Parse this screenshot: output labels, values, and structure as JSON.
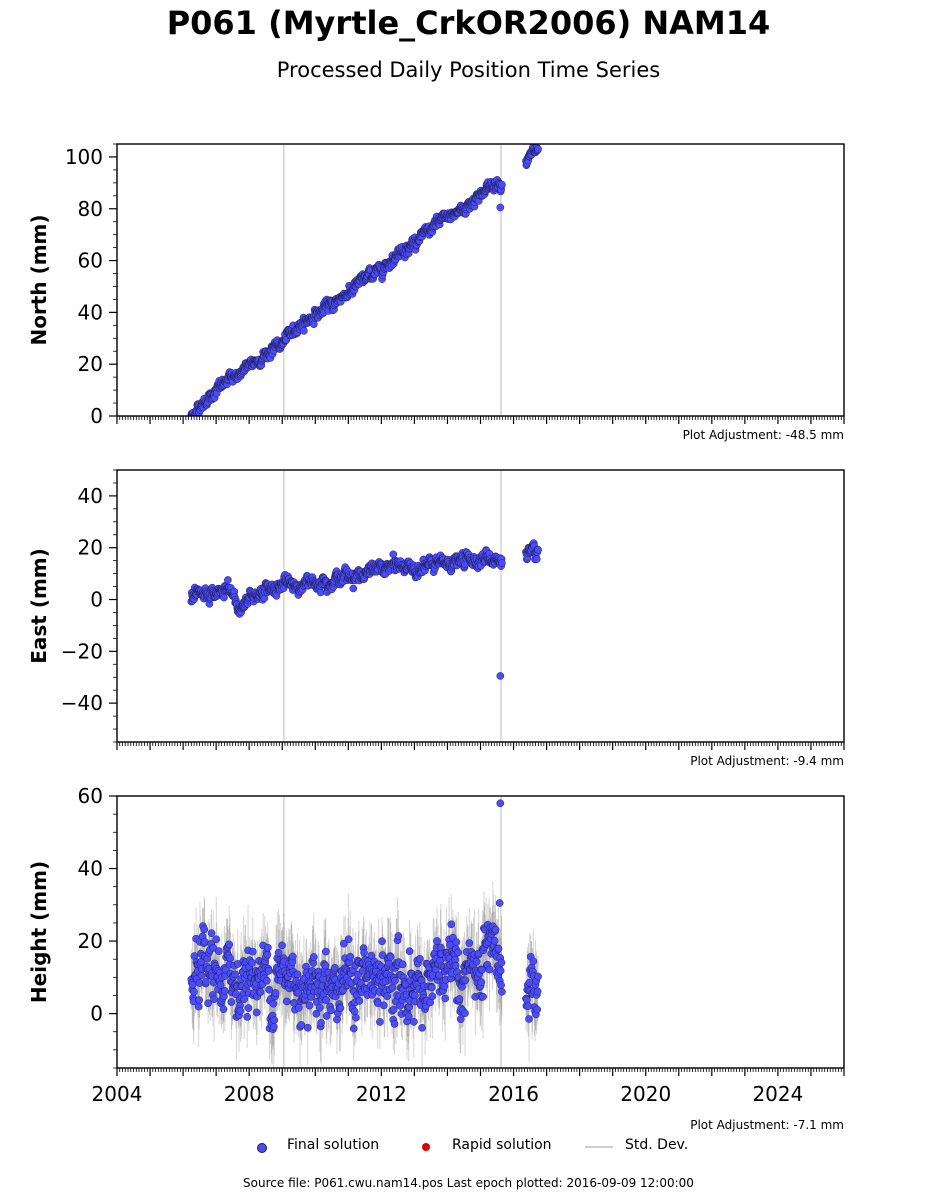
{
  "title": "P061 (Myrtle_CrkOR2006) NAM14",
  "subtitle": "Processed Daily Position Time Series",
  "chart_data": {
    "type": "scatter",
    "x_ticks": [
      2004,
      2008,
      2012,
      2016,
      2020,
      2024
    ],
    "xlim": [
      2004.0,
      2026.0
    ],
    "vlines": [
      2009.05,
      2015.62
    ],
    "colors": {
      "final": "#4b4bff",
      "rapid": "#e00000",
      "std": "#b0b0b0",
      "vline": "#cccccc"
    },
    "panels": [
      {
        "key": "north",
        "ylabel": "North (mm)",
        "ylim": [
          0,
          105
        ],
        "yticks": [
          0,
          20,
          40,
          60,
          80,
          100
        ],
        "adjustment": "Plot Adjustment: -48.5 mm",
        "trend": [
          [
            2006.25,
            0
          ],
          [
            2006.6,
            5
          ],
          [
            2007.0,
            10
          ],
          [
            2007.5,
            15
          ],
          [
            2008.0,
            19
          ],
          [
            2008.5,
            24
          ],
          [
            2009.0,
            28
          ],
          [
            2009.5,
            35
          ],
          [
            2010.0,
            39
          ],
          [
            2010.5,
            43
          ],
          [
            2011.0,
            48
          ],
          [
            2011.5,
            53
          ],
          [
            2012.0,
            57
          ],
          [
            2012.5,
            63
          ],
          [
            2013.0,
            67
          ],
          [
            2013.5,
            72
          ],
          [
            2014.0,
            77
          ],
          [
            2014.5,
            80
          ],
          [
            2015.0,
            86
          ],
          [
            2015.62,
            91
          ],
          [
            2016.4,
            99
          ],
          [
            2016.75,
            103
          ]
        ],
        "noise": 1.5,
        "gaps": [
          [
            2015.66,
            2016.37
          ]
        ],
        "outliers": [
          [
            2015.6,
            80.5
          ]
        ]
      },
      {
        "key": "east",
        "ylabel": "East (mm)",
        "ylim": [
          -55,
          50
        ],
        "yticks": [
          -40,
          -20,
          0,
          20,
          40
        ],
        "adjustment": "Plot Adjustment: -9.4 mm",
        "trend": [
          [
            2006.25,
            0
          ],
          [
            2006.8,
            1
          ],
          [
            2007.4,
            4
          ],
          [
            2007.7,
            -4
          ],
          [
            2008.0,
            1
          ],
          [
            2008.6,
            4
          ],
          [
            2009.0,
            6
          ],
          [
            2009.5,
            5
          ],
          [
            2010.0,
            7
          ],
          [
            2010.5,
            8
          ],
          [
            2011.0,
            9
          ],
          [
            2011.5,
            10
          ],
          [
            2012.0,
            12
          ],
          [
            2012.5,
            13
          ],
          [
            2013.0,
            12
          ],
          [
            2013.5,
            13
          ],
          [
            2014.0,
            14
          ],
          [
            2014.5,
            15
          ],
          [
            2015.0,
            16
          ],
          [
            2015.62,
            15
          ],
          [
            2016.4,
            18
          ],
          [
            2016.75,
            16
          ]
        ],
        "noise": 1.8,
        "gaps": [
          [
            2015.66,
            2016.37
          ]
        ],
        "outliers": [
          [
            2015.6,
            -29.5
          ]
        ]
      },
      {
        "key": "height",
        "ylabel": "Height (mm)",
        "ylim": [
          -15,
          60
        ],
        "yticks": [
          0,
          20,
          40,
          60
        ],
        "adjustment": "Plot Adjustment: -7.1 mm",
        "trend": [
          [
            2006.25,
            8
          ],
          [
            2007.0,
            9
          ],
          [
            2008.0,
            10
          ],
          [
            2009.0,
            10
          ],
          [
            2010.0,
            10
          ],
          [
            2011.0,
            9
          ],
          [
            2012.0,
            8
          ],
          [
            2013.0,
            8
          ],
          [
            2014.0,
            10
          ],
          [
            2015.0,
            11
          ],
          [
            2015.62,
            12
          ],
          [
            2016.4,
            5
          ],
          [
            2016.75,
            10
          ]
        ],
        "noise": 6.5,
        "gaps": [
          [
            2015.66,
            2016.37
          ]
        ],
        "outliers": [
          [
            2015.6,
            58
          ],
          [
            2015.58,
            30.5
          ]
        ],
        "std_dev": true
      }
    ],
    "legend": [
      {
        "label": "Final solution",
        "series": "final"
      },
      {
        "label": "Rapid solution",
        "series": "rapid"
      },
      {
        "label": "Std. Dev.",
        "series": "std"
      }
    ]
  },
  "source": "Source file: P061.cwu.nam14.pos  Last epoch plotted: 2016-09-09 12:00:00"
}
